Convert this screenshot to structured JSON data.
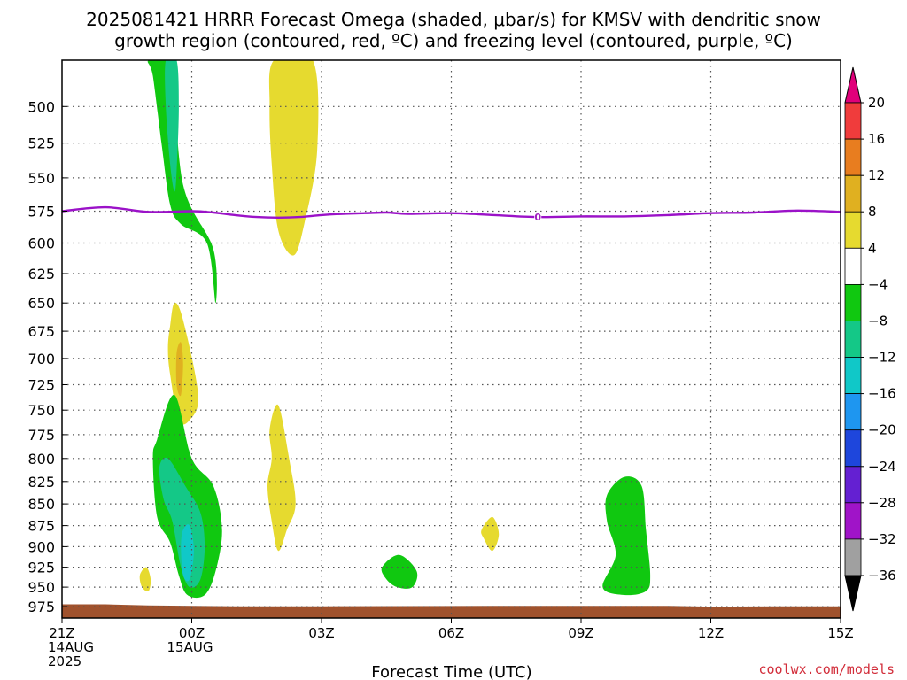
{
  "title_line1": "2025081421 HRRR Forecast Omega (shaded, μbar/s) for KMSV with dendritic snow",
  "title_line2": "growth region (contoured, red, ºC) and freezing level (contoured, purple, ºC)",
  "credit": "coolwx.com/models",
  "chart_data": {
    "type": "heatmap",
    "xlabel": "Forecast Time (UTC)",
    "ylabel": "",
    "x_ticks": [
      {
        "hours": 0,
        "lines": [
          "21Z",
          "14AUG",
          "2025"
        ]
      },
      {
        "hours": 3,
        "lines": [
          "00Z",
          "15AUG"
        ]
      },
      {
        "hours": 6,
        "lines": [
          "03Z"
        ]
      },
      {
        "hours": 9,
        "lines": [
          "06Z"
        ]
      },
      {
        "hours": 12,
        "lines": [
          "09Z"
        ]
      },
      {
        "hours": 15,
        "lines": [
          "12Z"
        ]
      },
      {
        "hours": 18,
        "lines": [
          "15Z"
        ]
      }
    ],
    "xlim_hours": [
      0,
      18
    ],
    "y_ticks_hPa": [
      500,
      525,
      550,
      575,
      600,
      625,
      650,
      675,
      700,
      725,
      750,
      775,
      800,
      825,
      850,
      875,
      900,
      925,
      950,
      975
    ],
    "ylim_hPa": [
      470,
      990
    ],
    "y_scale": "log-pressure",
    "grid": true,
    "colorbar": {
      "ticks": [
        20,
        16,
        12,
        8,
        4,
        -4,
        -8,
        -12,
        -16,
        -20,
        -24,
        -28,
        -32,
        -36
      ],
      "colors": [
        "#e0007a",
        "#f03c3c",
        "#e87d1f",
        "#e0b020",
        "#e6da2f",
        "#ffffff",
        "#10c810",
        "#14c887",
        "#10c8c8",
        "#1e96f0",
        "#1e46dc",
        "#6420d2",
        "#a014c8",
        "#a0a0a0",
        "#000000"
      ],
      "units": "μbar/s"
    },
    "shaded_regions": [
      {
        "omega": -6,
        "color": "#10c810",
        "points": [
          [
            2.0,
            470
          ],
          [
            2.5,
            470
          ],
          [
            2.8,
            555
          ],
          [
            3.5,
            605
          ],
          [
            3.55,
            650
          ],
          [
            3.35,
            600
          ],
          [
            2.75,
            585
          ],
          [
            2.5,
            570
          ],
          [
            2.3,
            525
          ],
          [
            2.1,
            480
          ]
        ]
      },
      {
        "omega": -10,
        "color": "#14c887",
        "points": [
          [
            2.4,
            470
          ],
          [
            2.65,
            470
          ],
          [
            2.7,
            500
          ],
          [
            2.65,
            545
          ],
          [
            2.6,
            560
          ],
          [
            2.5,
            540
          ],
          [
            2.4,
            500
          ]
        ]
      },
      {
        "omega": 6,
        "color": "#e6da2f",
        "points": [
          [
            4.9,
            470
          ],
          [
            5.8,
            470
          ],
          [
            5.9,
            530
          ],
          [
            5.6,
            585
          ],
          [
            5.35,
            610
          ],
          [
            5.0,
            590
          ],
          [
            4.85,
            540
          ],
          [
            4.8,
            500
          ]
        ]
      },
      {
        "omega": 6,
        "color": "#e6da2f",
        "points": [
          [
            2.5,
            670
          ],
          [
            2.6,
            650
          ],
          [
            2.8,
            665
          ],
          [
            3.15,
            735
          ],
          [
            2.95,
            760
          ],
          [
            2.7,
            760
          ],
          [
            2.5,
            715
          ],
          [
            2.45,
            690
          ]
        ]
      },
      {
        "omega": 10,
        "color": "#e0b020",
        "points": [
          [
            2.65,
            695
          ],
          [
            2.75,
            685
          ],
          [
            2.8,
            705
          ],
          [
            2.75,
            735
          ],
          [
            2.65,
            725
          ]
        ]
      },
      {
        "omega": -6,
        "color": "#10c810",
        "points": [
          [
            2.2,
            780
          ],
          [
            2.6,
            735
          ],
          [
            3.0,
            800
          ],
          [
            3.5,
            830
          ],
          [
            3.7,
            880
          ],
          [
            3.55,
            930
          ],
          [
            3.3,
            960
          ],
          [
            2.9,
            960
          ],
          [
            2.7,
            935
          ],
          [
            2.5,
            895
          ],
          [
            2.2,
            865
          ],
          [
            2.1,
            800
          ]
        ]
      },
      {
        "omega": -10,
        "color": "#14c887",
        "points": [
          [
            2.25,
            810
          ],
          [
            2.45,
            800
          ],
          [
            2.85,
            830
          ],
          [
            3.2,
            860
          ],
          [
            3.3,
            900
          ],
          [
            3.2,
            940
          ],
          [
            2.95,
            950
          ],
          [
            2.75,
            925
          ],
          [
            2.55,
            870
          ],
          [
            2.35,
            845
          ]
        ]
      },
      {
        "omega": -14,
        "color": "#10c8c8",
        "points": [
          [
            2.8,
            880
          ],
          [
            2.95,
            875
          ],
          [
            3.05,
            905
          ],
          [
            2.95,
            940
          ],
          [
            2.8,
            935
          ],
          [
            2.75,
            900
          ]
        ]
      },
      {
        "omega": 6,
        "color": "#e6da2f",
        "points": [
          [
            1.8,
            935
          ],
          [
            1.95,
            925
          ],
          [
            2.05,
            940
          ],
          [
            2.0,
            955
          ],
          [
            1.85,
            950
          ]
        ]
      },
      {
        "omega": 6,
        "color": "#e6da2f",
        "points": [
          [
            4.8,
            770
          ],
          [
            5.0,
            745
          ],
          [
            5.25,
            800
          ],
          [
            5.4,
            850
          ],
          [
            5.2,
            880
          ],
          [
            5.0,
            905
          ],
          [
            4.85,
            870
          ],
          [
            4.75,
            830
          ],
          [
            4.85,
            800
          ]
        ]
      },
      {
        "omega": -6,
        "color": "#10c810",
        "points": [
          [
            7.4,
            925
          ],
          [
            7.8,
            910
          ],
          [
            8.2,
            930
          ],
          [
            8.1,
            950
          ],
          [
            7.75,
            950
          ],
          [
            7.5,
            940
          ]
        ]
      },
      {
        "omega": 6,
        "color": "#e6da2f",
        "points": [
          [
            9.7,
            880
          ],
          [
            9.95,
            865
          ],
          [
            10.1,
            885
          ],
          [
            9.95,
            905
          ],
          [
            9.75,
            890
          ]
        ]
      },
      {
        "omega": -6,
        "color": "#10c810",
        "points": [
          [
            12.6,
            840
          ],
          [
            13.0,
            820
          ],
          [
            13.4,
            830
          ],
          [
            13.5,
            880
          ],
          [
            13.6,
            935
          ],
          [
            13.5,
            955
          ],
          [
            13.0,
            960
          ],
          [
            12.5,
            950
          ],
          [
            12.8,
            910
          ],
          [
            12.6,
            870
          ]
        ]
      }
    ],
    "freezing_level": {
      "temp_label": "0",
      "label_at_hours": 11.0,
      "points": [
        [
          0,
          575
        ],
        [
          1.0,
          572
        ],
        [
          2.0,
          575.5
        ],
        [
          3.0,
          575
        ],
        [
          3.5,
          576
        ],
        [
          4.0,
          578
        ],
        [
          4.5,
          579.5
        ],
        [
          5.0,
          580
        ],
        [
          5.5,
          579.5
        ],
        [
          6.0,
          578
        ],
        [
          6.5,
          577
        ],
        [
          7.0,
          576.5
        ],
        [
          7.5,
          576
        ],
        [
          8.0,
          577
        ],
        [
          9.0,
          576.5
        ],
        [
          10.0,
          578
        ],
        [
          11.0,
          579.5
        ],
        [
          12.0,
          579
        ],
        [
          13.0,
          579
        ],
        [
          14.0,
          578
        ],
        [
          15.0,
          576.5
        ],
        [
          16.0,
          576
        ],
        [
          17.0,
          574.5
        ],
        [
          18.0,
          575.5
        ]
      ]
    },
    "terrain": {
      "color": "#a0522d",
      "points": [
        [
          0,
          972
        ],
        [
          1.0,
          972
        ],
        [
          2.0,
          973.5
        ],
        [
          4.0,
          974.5
        ],
        [
          6.0,
          974.5
        ],
        [
          10.0,
          974
        ],
        [
          14.0,
          974
        ],
        [
          15.0,
          975
        ],
        [
          16.5,
          974.5
        ],
        [
          18.0,
          974.5
        ]
      ]
    }
  }
}
